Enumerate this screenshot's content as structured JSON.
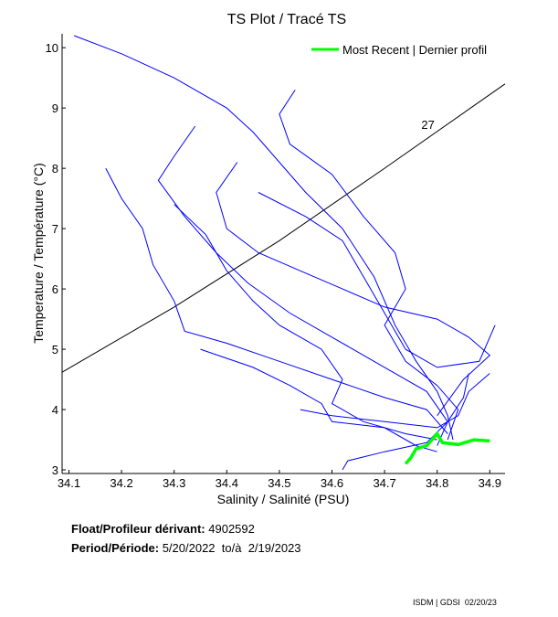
{
  "chart_data": {
    "type": "line",
    "title": "TS Plot / Tracé TS",
    "xlabel": "Salinity / Salinité (PSU)",
    "ylabel": "Temperature / Température (°C)",
    "xlim": [
      34.087,
      34.929
    ],
    "ylim": [
      2.94,
      10.23
    ],
    "xticks": [
      "34.1",
      "34.2",
      "34.3",
      "34.4",
      "34.5",
      "34.6",
      "34.7",
      "34.8",
      "34.9"
    ],
    "yticks": [
      "3",
      "4",
      "5",
      "6",
      "7",
      "8",
      "9",
      "10"
    ],
    "grid": false,
    "legend": {
      "placement": "top-right",
      "entries": [
        "Most Recent | Dernier profil"
      ]
    },
    "colors": {
      "profiles": "#0000ff",
      "recent": "#00ff00",
      "isopycnal": "#000000"
    },
    "isopycnal": {
      "label": "27",
      "points": [
        [
          34.087,
          4.62
        ],
        [
          34.3,
          5.7
        ],
        [
          34.5,
          6.8
        ],
        [
          34.7,
          8.0
        ],
        [
          34.929,
          9.4
        ]
      ]
    },
    "profiles": [
      [
        [
          34.11,
          10.2
        ],
        [
          34.2,
          9.9
        ],
        [
          34.3,
          9.5
        ],
        [
          34.4,
          9.0
        ],
        [
          34.45,
          8.6
        ],
        [
          34.5,
          8.1
        ],
        [
          34.55,
          7.6
        ],
        [
          34.62,
          7.0
        ],
        [
          34.68,
          6.2
        ],
        [
          34.72,
          5.4
        ],
        [
          34.76,
          4.8
        ],
        [
          34.8,
          4.3
        ],
        [
          34.82,
          3.9
        ],
        [
          34.83,
          3.5
        ]
      ],
      [
        [
          34.34,
          8.7
        ],
        [
          34.3,
          8.2
        ],
        [
          34.27,
          7.8
        ],
        [
          34.32,
          7.2
        ],
        [
          34.38,
          6.6
        ],
        [
          34.44,
          6.1
        ],
        [
          34.52,
          5.6
        ],
        [
          34.6,
          5.2
        ],
        [
          34.7,
          4.7
        ],
        [
          34.78,
          4.3
        ],
        [
          34.82,
          3.8
        ],
        [
          34.8,
          3.4
        ]
      ],
      [
        [
          34.53,
          9.3
        ],
        [
          34.5,
          8.9
        ],
        [
          34.52,
          8.4
        ],
        [
          34.6,
          7.9
        ],
        [
          34.66,
          7.2
        ],
        [
          34.72,
          6.6
        ],
        [
          34.74,
          6.0
        ],
        [
          34.7,
          5.4
        ],
        [
          34.74,
          4.8
        ],
        [
          34.8,
          4.4
        ],
        [
          34.84,
          4.0
        ],
        [
          34.82,
          3.5
        ]
      ],
      [
        [
          34.17,
          8.0
        ],
        [
          34.2,
          7.5
        ],
        [
          34.24,
          7.0
        ],
        [
          34.26,
          6.4
        ],
        [
          34.3,
          5.8
        ],
        [
          34.32,
          5.3
        ],
        [
          34.4,
          5.1
        ],
        [
          34.5,
          4.8
        ],
        [
          34.6,
          4.5
        ],
        [
          34.7,
          4.2
        ],
        [
          34.78,
          4.0
        ],
        [
          34.82,
          3.6
        ]
      ],
      [
        [
          34.42,
          8.1
        ],
        [
          34.38,
          7.6
        ],
        [
          34.4,
          7.0
        ],
        [
          34.46,
          6.6
        ],
        [
          34.54,
          6.3
        ],
        [
          34.62,
          6.0
        ],
        [
          34.7,
          5.7
        ],
        [
          34.8,
          5.5
        ],
        [
          34.86,
          5.2
        ],
        [
          34.9,
          4.9
        ],
        [
          34.85,
          4.5
        ],
        [
          34.8,
          3.9
        ]
      ],
      [
        [
          34.3,
          7.4
        ],
        [
          34.36,
          6.9
        ],
        [
          34.4,
          6.3
        ],
        [
          34.45,
          5.8
        ],
        [
          34.5,
          5.4
        ],
        [
          34.58,
          5.0
        ],
        [
          34.62,
          4.5
        ],
        [
          34.6,
          4.1
        ],
        [
          34.66,
          3.8
        ],
        [
          34.74,
          3.6
        ],
        [
          34.8,
          3.5
        ]
      ],
      [
        [
          34.46,
          7.6
        ],
        [
          34.55,
          7.2
        ],
        [
          34.62,
          6.8
        ],
        [
          34.66,
          6.2
        ],
        [
          34.7,
          5.6
        ],
        [
          34.74,
          5.0
        ],
        [
          34.8,
          4.7
        ],
        [
          34.88,
          4.8
        ],
        [
          34.91,
          5.4
        ]
      ],
      [
        [
          34.35,
          5.0
        ],
        [
          34.45,
          4.7
        ],
        [
          34.52,
          4.4
        ],
        [
          34.58,
          4.1
        ],
        [
          34.6,
          3.8
        ],
        [
          34.7,
          3.7
        ],
        [
          34.76,
          3.4
        ],
        [
          34.8,
          3.3
        ]
      ],
      [
        [
          34.62,
          3.0
        ],
        [
          34.63,
          3.15
        ],
        [
          34.7,
          3.3
        ],
        [
          34.78,
          3.45
        ],
        [
          34.82,
          3.8
        ],
        [
          34.85,
          4.2
        ],
        [
          34.86,
          4.6
        ]
      ],
      [
        [
          34.54,
          4.0
        ],
        [
          34.6,
          3.9
        ],
        [
          34.7,
          3.8
        ],
        [
          34.8,
          3.7
        ],
        [
          34.84,
          3.9
        ],
        [
          34.86,
          4.3
        ],
        [
          34.9,
          4.6
        ]
      ]
    ],
    "recent": [
      [
        34.74,
        3.1
      ],
      [
        34.75,
        3.2
      ],
      [
        34.76,
        3.35
      ],
      [
        34.78,
        3.4
      ],
      [
        34.8,
        3.6
      ],
      [
        34.81,
        3.45
      ],
      [
        34.84,
        3.42
      ],
      [
        34.87,
        3.5
      ],
      [
        34.9,
        3.48
      ]
    ]
  },
  "footer": {
    "float_label": "Float/Profileur dérivant:",
    "float_id": "4902592",
    "period_label": "Period/Période:",
    "period_start": "5/20/2022",
    "period_sep": "to/à",
    "period_end": "2/19/2023",
    "credit": "ISDM | GDSI  02/20/23"
  }
}
